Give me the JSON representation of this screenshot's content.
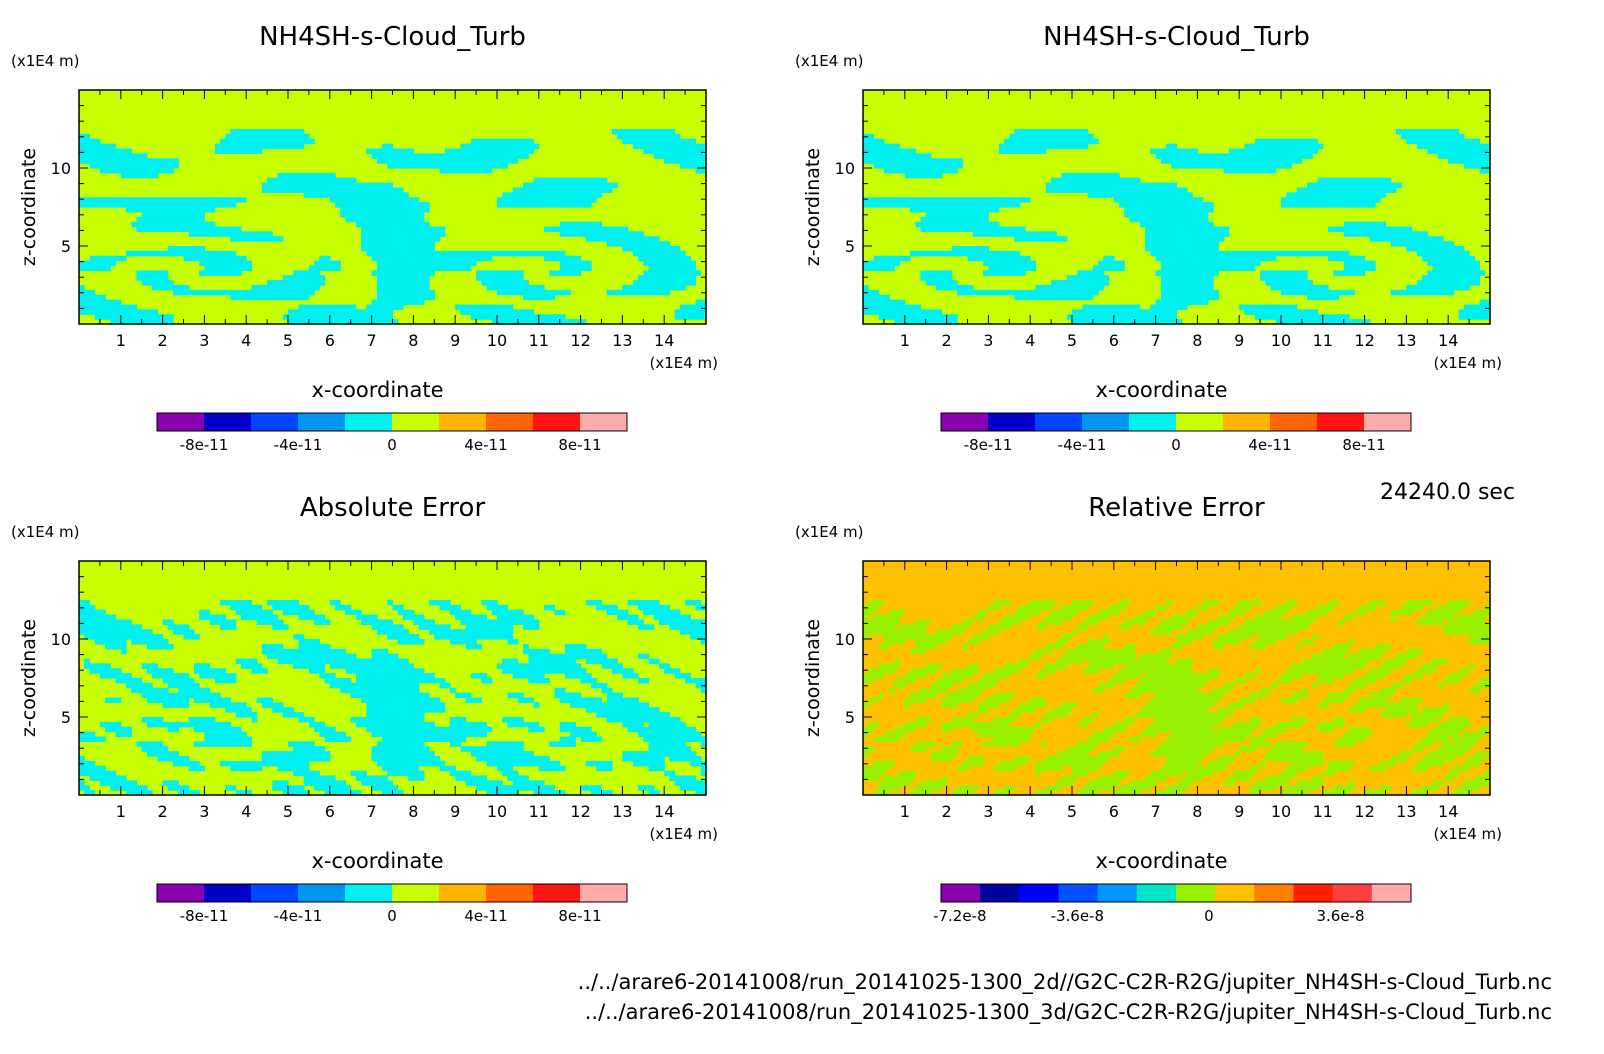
{
  "time_label": "24240.0 sec",
  "files": [
    "../../arare6-20141008/run_20141025-1300_2d//G2C-C2R-R2G/jupiter_NH4SH-s-Cloud_Turb.nc",
    "../../arare6-20141008/run_20141025-1300_3d/G2C-C2R-R2G/jupiter_NH4SH-s-Cloud_Turb.nc"
  ],
  "chart_data": [
    {
      "type": "heatmap",
      "title": "NH4SH-s-Cloud_Turb",
      "xlabel": "x-coordinate",
      "ylabel": "z-coordinate",
      "x_unit": "(x1E4 m)",
      "y_unit": "(x1E4 m)",
      "xlim": [
        0,
        15
      ],
      "ylim": [
        0,
        15
      ],
      "xticks": [
        "1",
        "2",
        "3",
        "4",
        "5",
        "6",
        "7",
        "8",
        "9",
        "10",
        "11",
        "12",
        "13",
        "14"
      ],
      "yticks": [
        "5",
        "10"
      ],
      "pattern": "field",
      "colorbar": {
        "colors": [
          "#8a00b0",
          "#0000c8",
          "#0046ff",
          "#0096f0",
          "#00f0f0",
          "#c8ff00",
          "#ffb400",
          "#ff6400",
          "#ff1414",
          "#ffaaaa"
        ],
        "labels": [
          "-8e-11",
          "-4e-11",
          "0",
          "4e-11",
          "8e-11"
        ]
      }
    },
    {
      "type": "heatmap",
      "title": "NH4SH-s-Cloud_Turb",
      "xlabel": "x-coordinate",
      "ylabel": "z-coordinate",
      "x_unit": "(x1E4 m)",
      "y_unit": "(x1E4 m)",
      "xlim": [
        0,
        15
      ],
      "ylim": [
        0,
        15
      ],
      "xticks": [
        "1",
        "2",
        "3",
        "4",
        "5",
        "6",
        "7",
        "8",
        "9",
        "10",
        "11",
        "12",
        "13",
        "14"
      ],
      "yticks": [
        "5",
        "10"
      ],
      "pattern": "field",
      "colorbar": {
        "colors": [
          "#8a00b0",
          "#0000c8",
          "#0046ff",
          "#0096f0",
          "#00f0f0",
          "#c8ff00",
          "#ffb400",
          "#ff6400",
          "#ff1414",
          "#ffaaaa"
        ],
        "labels": [
          "-8e-11",
          "-4e-11",
          "0",
          "4e-11",
          "8e-11"
        ]
      }
    },
    {
      "type": "heatmap",
      "title": "Absolute Error",
      "xlabel": "x-coordinate",
      "ylabel": "z-coordinate",
      "x_unit": "(x1E4 m)",
      "y_unit": "(x1E4 m)",
      "xlim": [
        0,
        15
      ],
      "ylim": [
        0,
        15
      ],
      "xticks": [
        "1",
        "2",
        "3",
        "4",
        "5",
        "6",
        "7",
        "8",
        "9",
        "10",
        "11",
        "12",
        "13",
        "14"
      ],
      "yticks": [
        "5",
        "10"
      ],
      "pattern": "abs",
      "colorbar": {
        "colors": [
          "#8a00b0",
          "#0000c8",
          "#0046ff",
          "#0096f0",
          "#00f0f0",
          "#c8ff00",
          "#ffb400",
          "#ff6400",
          "#ff1414",
          "#ffaaaa"
        ],
        "labels": [
          "-8e-11",
          "-4e-11",
          "0",
          "4e-11",
          "8e-11"
        ]
      }
    },
    {
      "type": "heatmap",
      "title": "Relative Error",
      "xlabel": "x-coordinate",
      "ylabel": "z-coordinate",
      "x_unit": "(x1E4 m)",
      "y_unit": "(x1E4 m)",
      "xlim": [
        0,
        15
      ],
      "ylim": [
        0,
        15
      ],
      "xticks": [
        "1",
        "2",
        "3",
        "4",
        "5",
        "6",
        "7",
        "8",
        "9",
        "10",
        "11",
        "12",
        "13",
        "14"
      ],
      "yticks": [
        "5",
        "10"
      ],
      "pattern": "rel",
      "colorbar": {
        "colors": [
          "#8a00b0",
          "#0000a0",
          "#0000ff",
          "#0050ff",
          "#0096ff",
          "#00e6c8",
          "#96f000",
          "#ffc000",
          "#ff8000",
          "#ff2000",
          "#ff4040",
          "#ffaaaa"
        ],
        "labels": [
          "-7.2e-8",
          "-3.6e-8",
          "0",
          "3.6e-8"
        ]
      }
    }
  ]
}
